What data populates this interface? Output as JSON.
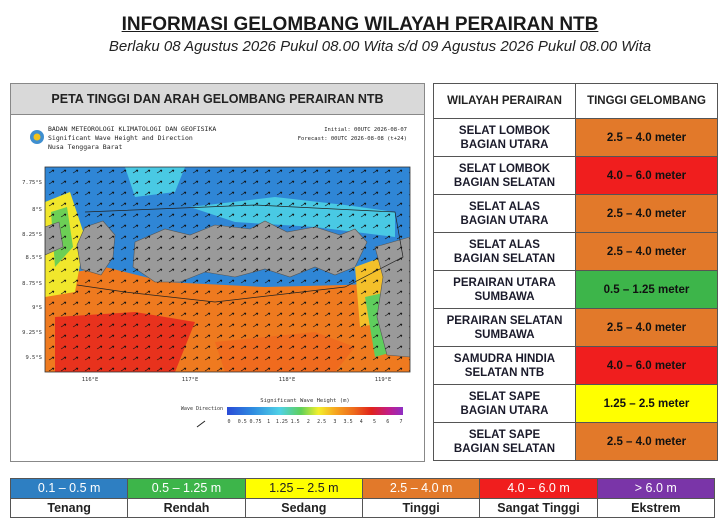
{
  "header": {
    "title": "INFORMASI GELOMBANG WILAYAH PERAIRAN NTB",
    "subtitle": "Berlaku 08 Agustus 2026 Pukul 08.00 Wita s/d 09 Agustus 2026 Pukul 08.00 Wita"
  },
  "map": {
    "title": "PETA TINGGI DAN ARAH GELOMBANG PERAIRAN NTB",
    "agency": "BADAN METEOROLOGI KLIMATOLOGI DAN GEOFISIKA",
    "product": "Significant Wave Height and Direction",
    "region": "Nusa Tenggara Barat",
    "initial": "Initial: 00UTC 2026-08-07",
    "forecast": "Forecast: 00UTC 2026-08-08 (t+24)",
    "lat_labels": [
      "7.75°S",
      "8°S",
      "8.25°S",
      "8.5°S",
      "8.75°S",
      "9°S",
      "9.25°S",
      "9.5°S"
    ],
    "lon_labels": [
      "116°E",
      "117°E",
      "118°E",
      "119°E"
    ],
    "direction_label": "Wave Direction",
    "colorbar_label": "Significant Wave Height (m)",
    "colorbar_ticks": [
      "0",
      "0.5",
      "0.75",
      "1",
      "1.25",
      "1.5",
      "2",
      "2.5",
      "3",
      "3.5",
      "4",
      "5",
      "6",
      "7"
    ]
  },
  "table": {
    "headers": [
      "WILAYAH PERAIRAN",
      "TINGGI GELOMBANG"
    ],
    "rows": [
      {
        "area": [
          "SELAT LOMBOK",
          "BAGIAN UTARA"
        ],
        "height": "2.5 – 4.0 meter",
        "color": "#e2792a"
      },
      {
        "area": [
          "SELAT LOMBOK",
          "BAGIAN SELATAN"
        ],
        "height": "4.0 – 6.0 meter",
        "color": "#f01e1e"
      },
      {
        "area": [
          "SELAT ALAS",
          "BAGIAN UTARA"
        ],
        "height": "2.5 – 4.0 meter",
        "color": "#e2792a"
      },
      {
        "area": [
          "SELAT ALAS",
          "BAGIAN SELATAN"
        ],
        "height": "2.5 – 4.0 meter",
        "color": "#e2792a"
      },
      {
        "area": [
          "PERAIRAN UTARA",
          "SUMBAWA"
        ],
        "height": "0.5 – 1.25 meter",
        "color": "#3db54a"
      },
      {
        "area": [
          "PERAIRAN SELATAN",
          "SUMBAWA"
        ],
        "height": "2.5 – 4.0 meter",
        "color": "#e2792a"
      },
      {
        "area": [
          "SAMUDRA HINDIA",
          "SELATAN NTB"
        ],
        "height": "4.0 – 6.0 meter",
        "color": "#f01e1e"
      },
      {
        "area": [
          "SELAT SAPE",
          "BAGIAN UTARA"
        ],
        "height": "1.25 – 2.5 meter",
        "color": "#ffff00"
      },
      {
        "area": [
          "SELAT SAPE",
          "BAGIAN SELATAN"
        ],
        "height": "2.5 – 4.0 meter",
        "color": "#e2792a"
      }
    ]
  },
  "legend": [
    {
      "range": "0.1 – 0.5 m",
      "label": "Tenang",
      "color": "#2e7fc2"
    },
    {
      "range": "0.5 – 1.25 m",
      "label": "Rendah",
      "color": "#3db54a"
    },
    {
      "range": "1.25 – 2.5 m",
      "label": "Sedang",
      "color": "#ffff00"
    },
    {
      "range": "2.5 – 4.0 m",
      "label": "Tinggi",
      "color": "#e2792a"
    },
    {
      "range": "4.0 – 6.0 m",
      "label": "Sangat Tinggi",
      "color": "#f01e1e"
    },
    {
      "range": "> 6.0 m",
      "label": "Ekstrem",
      "color": "#7a35a8"
    }
  ]
}
